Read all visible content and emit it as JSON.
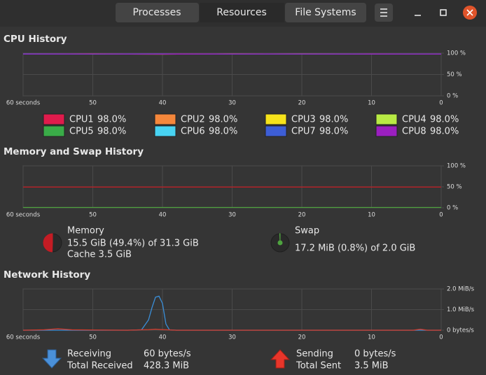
{
  "header": {
    "tabs": [
      "Processes",
      "Resources",
      "File Systems"
    ]
  },
  "cpu": {
    "title": "CPU History",
    "xlim": [
      60,
      0
    ],
    "xticks": [
      {
        "value": 60,
        "label": "60 seconds"
      },
      50,
      40,
      30,
      20,
      10,
      0
    ],
    "ylim": [
      0,
      100
    ],
    "yticks": [
      {
        "value": 100,
        "label": "100 %"
      },
      {
        "value": 50,
        "label": "50 %"
      },
      {
        "value": 0,
        "label": "0 %"
      }
    ],
    "x": [
      60,
      50,
      40,
      30,
      20,
      10,
      0
    ],
    "series": [
      {
        "name": "CPU1",
        "label": "98.0%",
        "color": "#e01b4c",
        "values": [
          98.2,
          97.9,
          98.4,
          98.1,
          97.8,
          98.3,
          98.0
        ]
      },
      {
        "name": "CPU2",
        "label": "98.0%",
        "color": "#f5873b",
        "values": [
          97.8,
          98.3,
          98.0,
          97.7,
          98.2,
          98.1,
          98.0
        ]
      },
      {
        "name": "CPU3",
        "label": "98.0%",
        "color": "#f6e31b",
        "values": [
          98.1,
          98.0,
          97.6,
          98.3,
          98.0,
          97.9,
          98.0
        ]
      },
      {
        "name": "CPU4",
        "label": "98.0%",
        "color": "#b8ea44",
        "values": [
          97.9,
          98.2,
          98.1,
          97.9,
          98.4,
          98.0,
          98.0
        ]
      },
      {
        "name": "CPU5",
        "label": "98.0%",
        "color": "#3aac48",
        "values": [
          98.0,
          97.7,
          98.2,
          98.0,
          97.9,
          98.2,
          98.0
        ]
      },
      {
        "name": "CPU6",
        "label": "98.0%",
        "color": "#48d3f2",
        "values": [
          98.3,
          98.0,
          97.9,
          98.2,
          98.1,
          97.8,
          98.0
        ]
      },
      {
        "name": "CPU7",
        "label": "98.0%",
        "color": "#3d5ed6",
        "values": [
          97.7,
          98.1,
          98.3,
          97.8,
          98.0,
          98.2,
          98.0
        ]
      },
      {
        "name": "CPU8",
        "label": "98.0%",
        "color": "#9b1fc0",
        "values": [
          98.1,
          98.2,
          97.8,
          98.1,
          98.2,
          97.9,
          98.0
        ]
      }
    ]
  },
  "memory": {
    "title": "Memory and Swap History",
    "xlim": [
      60,
      0
    ],
    "xticks": [
      {
        "value": 60,
        "label": "60 seconds"
      },
      50,
      40,
      30,
      20,
      10,
      0
    ],
    "ylim": [
      0,
      100
    ],
    "yticks": [
      {
        "value": 100,
        "label": "100 %"
      },
      {
        "value": 50,
        "label": "50 %"
      },
      {
        "value": 0,
        "label": "0 %"
      }
    ],
    "x": [
      60,
      0
    ],
    "series": [
      {
        "name": "Memory",
        "color": "#c41c24",
        "values": [
          49.4,
          49.4
        ],
        "details": [
          "15.5 GiB (49.4%) of 31.3 GiB",
          "Cache 3.5 GiB"
        ]
      },
      {
        "name": "Swap",
        "color": "#4ea33f",
        "values": [
          0.8,
          0.8
        ],
        "details": [
          "17.2 MiB (0.8%) of 2.0 GiB"
        ]
      }
    ]
  },
  "network": {
    "title": "Network History",
    "xlim": [
      60,
      0
    ],
    "xticks": [
      {
        "value": 60,
        "label": "60 seconds"
      },
      50,
      40,
      30,
      20,
      10,
      0
    ],
    "ylim": [
      0,
      2
    ],
    "yticks": [
      {
        "value": 2,
        "label": "2.0 MiB/s"
      },
      {
        "value": 1,
        "label": "1.0 MiB/s"
      },
      {
        "value": 0,
        "label": "0 bytes/s"
      }
    ],
    "series": [
      {
        "name": "Receiving",
        "color": "#3a8fd9",
        "rate": "60 bytes/s",
        "total_label": "Total Received",
        "total": "428.3 MiB",
        "x": [
          60,
          45,
          43,
          42,
          41.5,
          41,
          40.5,
          40,
          39.5,
          39,
          38,
          30,
          0
        ],
        "values": [
          0,
          0,
          0.02,
          0.5,
          1.1,
          1.6,
          1.65,
          1.3,
          0.3,
          0.02,
          0,
          0,
          0
        ]
      },
      {
        "name": "Sending",
        "color": "#d63c2c",
        "rate": "0 bytes/s",
        "total_label": "Total Sent",
        "total": "3.5 MiB",
        "x": [
          60,
          57,
          55,
          53,
          45,
          42,
          41,
          40,
          38,
          4,
          3,
          2,
          0
        ],
        "values": [
          0,
          0.02,
          0.07,
          0.02,
          0,
          0.03,
          0.05,
          0.03,
          0,
          0,
          0.05,
          0,
          0
        ]
      }
    ]
  }
}
